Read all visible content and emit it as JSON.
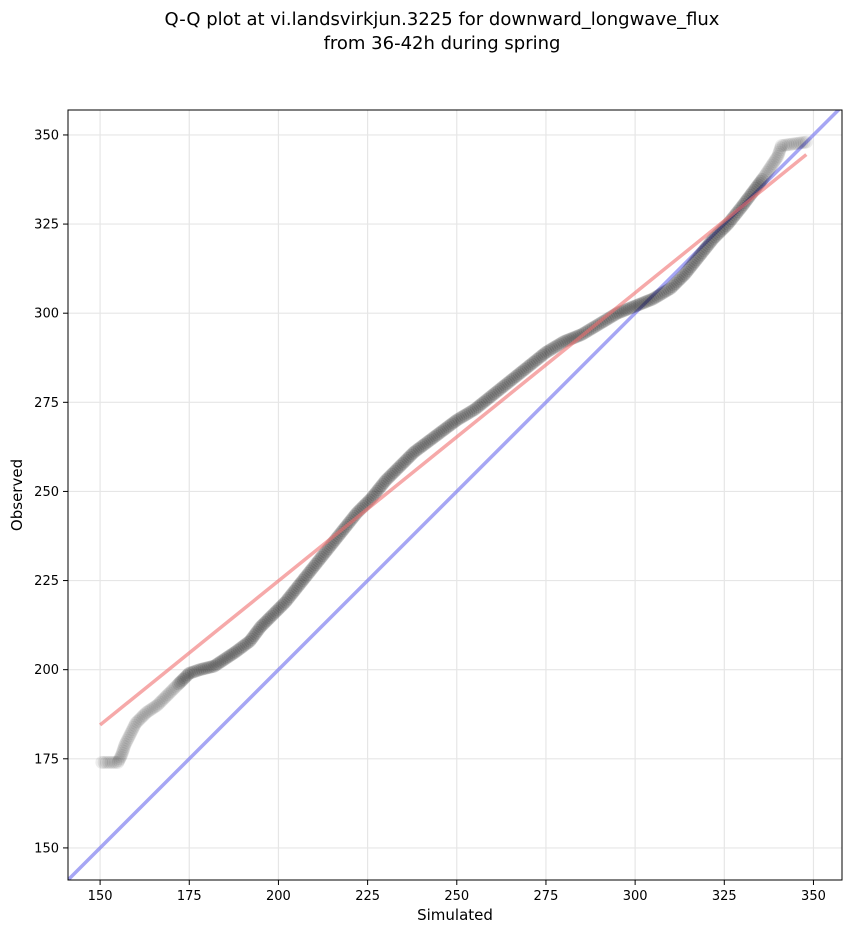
{
  "chart_data": {
    "type": "scatter",
    "title_lines": [
      "Q-Q plot at vi.landsvirkjun.3225 for downward_longwave_flux",
      "from 36-42h during spring"
    ],
    "xlabel": "Simulated",
    "ylabel": "Observed",
    "xlim": [
      141,
      358
    ],
    "ylim": [
      141,
      357
    ],
    "xticks": [
      150,
      175,
      200,
      225,
      250,
      275,
      300,
      325,
      350
    ],
    "yticks": [
      150,
      175,
      200,
      225,
      250,
      275,
      300,
      325,
      350
    ],
    "grid": true,
    "quantile_curve": [
      [
        150.5,
        174
      ],
      [
        155,
        174
      ],
      [
        156,
        176
      ],
      [
        157,
        179
      ],
      [
        158.5,
        182
      ],
      [
        160,
        185
      ],
      [
        163,
        188
      ],
      [
        166,
        190
      ],
      [
        169,
        193
      ],
      [
        172,
        196
      ],
      [
        175,
        199
      ],
      [
        178,
        200
      ],
      [
        182,
        201
      ],
      [
        185,
        203
      ],
      [
        188,
        205
      ],
      [
        192,
        208
      ],
      [
        195,
        212
      ],
      [
        198,
        215
      ],
      [
        202,
        219
      ],
      [
        206,
        224
      ],
      [
        210,
        229
      ],
      [
        214,
        234
      ],
      [
        218,
        239
      ],
      [
        222,
        244
      ],
      [
        226,
        248
      ],
      [
        230,
        253
      ],
      [
        234,
        257
      ],
      [
        238,
        261
      ],
      [
        242,
        264
      ],
      [
        246,
        267
      ],
      [
        250,
        270
      ],
      [
        255,
        273
      ],
      [
        260,
        277
      ],
      [
        265,
        281
      ],
      [
        270,
        285
      ],
      [
        275,
        289
      ],
      [
        280,
        292
      ],
      [
        285,
        294
      ],
      [
        290,
        297
      ],
      [
        295,
        300
      ],
      [
        300,
        302
      ],
      [
        305,
        304
      ],
      [
        310,
        307
      ],
      [
        314,
        311
      ],
      [
        318,
        316
      ],
      [
        322,
        321
      ],
      [
        326,
        325
      ],
      [
        330,
        330
      ],
      [
        333,
        334
      ],
      [
        336,
        338
      ],
      [
        338,
        341
      ],
      [
        340,
        344
      ],
      [
        341,
        347
      ],
      [
        348,
        348
      ]
    ],
    "fit_line": {
      "x": [
        150,
        348
      ],
      "y": [
        184.5,
        344.5
      ],
      "color": "#f07070"
    },
    "reference_line": {
      "x": [
        141,
        358
      ],
      "y": [
        141,
        358
      ],
      "color": "#8080f0"
    },
    "point_color": "#000000"
  }
}
